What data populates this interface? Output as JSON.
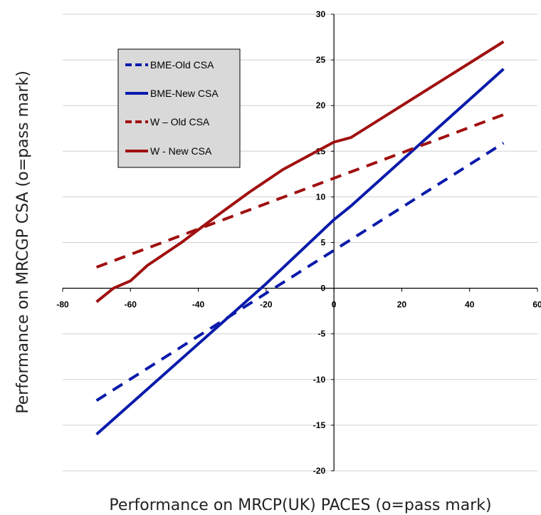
{
  "chart_data": {
    "type": "line",
    "xlabel": "Performance on MRCP(UK) PACES (o=pass mark)",
    "ylabel": "Performance on MRCGP CSA (o=pass mark)",
    "xlim": [
      -80,
      60
    ],
    "ylim": [
      -20,
      30
    ],
    "xticks": [
      "-80",
      "-60",
      "-40",
      "-20",
      "0",
      "20",
      "40",
      "60"
    ],
    "yticks": [
      "30",
      "25",
      "20",
      "15",
      "10",
      "5",
      "0",
      "-5",
      "-10",
      "-15",
      "-20"
    ],
    "grid": "horizontal",
    "legend_position": "top-left",
    "series": [
      {
        "name": "BME-Old CSA",
        "color": "#0a1aaa",
        "style": "dashed",
        "x": [
          -70,
          50
        ],
        "y": [
          -12.3,
          15.9
        ]
      },
      {
        "name": "BME-New CSA",
        "color": "#0a1aaa",
        "style": "solid",
        "x": [
          -70,
          -20,
          0,
          5,
          50
        ],
        "y": [
          -16,
          0.5,
          7.5,
          9,
          24
        ]
      },
      {
        "name": "W – Old CSA",
        "color": "#a01010",
        "style": "dashed",
        "x": [
          -70,
          50
        ],
        "y": [
          2.3,
          19
        ]
      },
      {
        "name": "W - New CSA",
        "color": "#a01010",
        "style": "solid",
        "x": [
          -70,
          -65,
          -60,
          -55,
          -45,
          -35,
          -25,
          -15,
          -5,
          0,
          5,
          50
        ],
        "y": [
          -1.5,
          0,
          0.8,
          2.5,
          5,
          7.8,
          10.5,
          13,
          15,
          16,
          16.5,
          27
        ]
      }
    ]
  }
}
